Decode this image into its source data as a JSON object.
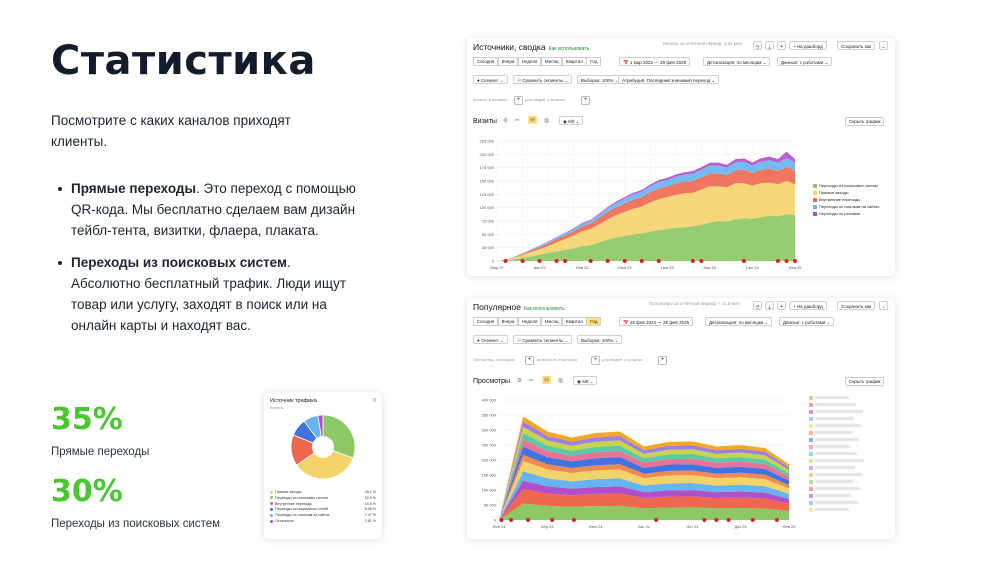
{
  "heading": "Статистика",
  "intro": "Посмотрите с каких каналов приходят клиенты.",
  "bullets": [
    {
      "bold": "Прямые переходы",
      "text": ". Это переход с помощью QR-кода. Мы бесплатно сделаем вам дизайн тейбл-тента, визитки, флаера, плаката."
    },
    {
      "bold": "Переходы из поисковых систем",
      "text": ". Абсолютно бесплатный трафик. Люди ищут товар или услугу, заходят в поиск или на онлайн карты и находят вас."
    }
  ],
  "stats": [
    {
      "value": "35%",
      "label": "Прямые переходы"
    },
    {
      "value": "30%",
      "label": "Переходы из поисковых систем"
    }
  ],
  "pie_card": {
    "title": "Источник трафика",
    "subtitle": "Визиты",
    "gear_icon": "gear-icon",
    "legend": [
      {
        "label": "Прямые заходы",
        "value": "35.1 %",
        "color": "#f5d36b"
      },
      {
        "label": "Переходы из поисковых систем",
        "value": "30.9 %",
        "color": "#8cc863"
      },
      {
        "label": "Внутренние переходы",
        "value": "15.8 %",
        "color": "#f0674f"
      },
      {
        "label": "Переходы из социальных сетей",
        "value": "8.98 %",
        "color": "#3f73e0"
      },
      {
        "label": "Переходы по ссылкам на сайтах",
        "value": "7.47 %",
        "color": "#66b4f0"
      },
      {
        "label": "Остальные",
        "value": "2.61 %",
        "color": "#b04fc8"
      }
    ]
  },
  "report1": {
    "title": "Источники, сводка",
    "how": "Как использовать",
    "right_hint": "Визиты за отчётный период: 4,81 млн",
    "to_dashboard": "+ На дашборд",
    "save_as": "Сохранить как",
    "periods": [
      "Сегодня",
      "Вчера",
      "Неделя",
      "Месяц",
      "Квартал",
      "Год"
    ],
    "date_range": "1 мар 2022 — 28 фев 2025",
    "detail": "Детализация: по месяцам",
    "robots": "Данные: с роботами",
    "segment": "Сегмент",
    "compare": "Сравнить сегменты",
    "sample": "Выборка: 100%",
    "attribution": "Атрибуция: Последний значимый переход",
    "filter1": "Визиты, в которых",
    "filter2": "для людей, у которых",
    "chart_title": "Визиты",
    "metric_count": "6/6",
    "hide_chart": "Скрыть график",
    "legend": [
      {
        "label": "Переходы из поисковых систем",
        "color": "#8cc863"
      },
      {
        "label": "Прямые заходы",
        "color": "#f5d36b"
      },
      {
        "label": "Внутренние переходы",
        "color": "#f0674f"
      },
      {
        "label": "Переходы по ссылкам на сайтах",
        "color": "#66b4f0"
      },
      {
        "label": "Переходы по рекламе",
        "color": "#b04fc8"
      }
    ]
  },
  "report2": {
    "title": "Популярное",
    "how": "Как использовать",
    "right_hint": "Просмотры за отчётный период: ≈ 11,0 млн",
    "to_dashboard": "+ На дашборд",
    "save_as": "Сохранить как",
    "periods": [
      "Сегодня",
      "Вчера",
      "Неделя",
      "Месяц",
      "Квартал",
      "Год"
    ],
    "date_range": "29 фев 2024 — 28 фев 2025",
    "detail": "Детализация: по месяцам",
    "robots": "Данные: с роботами",
    "segment": "Сегмент",
    "compare": "Сравнить сегменты",
    "sample": "Выборка: 100%",
    "filter1": "Просмотры, в которых",
    "filter2": "из визитов, в которых",
    "filter3": "для людей, у которых",
    "chart_title": "Просмотры",
    "metric_count": "6/6",
    "hide_chart": "Скрыть график"
  },
  "chart_data": [
    {
      "type": "area",
      "title": "",
      "x": [
        "Мар 22",
        "Апр 22",
        "Май 22",
        "Июн 22",
        "Июл 22",
        "Авг 22",
        "Сен 22",
        "Окт 22",
        "Ноя 22",
        "Дек 22",
        "Янв 23",
        "Фев 23",
        "Мар 23",
        "Апр 23",
        "Май 23",
        "Июн 23",
        "Июл 23",
        "Авг 23",
        "Сен 23",
        "Окт 23",
        "Ноя 23",
        "Дек 23",
        "Янв 24",
        "Фев 24",
        "Мар 24",
        "Апр 24",
        "Май 24",
        "Июн 24",
        "Июл 24",
        "Авг 24",
        "Сен 24",
        "Окт 24",
        "Ноя 24",
        "Дек 24",
        "Янв 25",
        "Фев 25"
      ],
      "x_ticks": [
        "Мар 22",
        "Авг 22",
        "Янв 23",
        "Июн 23",
        "Ноя 23",
        "Апр 24",
        "Сен 24",
        "Фев 25"
      ],
      "ylim": [
        0,
        225000
      ],
      "y_ticks": [
        "0",
        "25 000",
        "50 000",
        "75 000",
        "100 000",
        "125 000",
        "150 000",
        "175 000",
        "200 000",
        "225 000"
      ],
      "series": [
        {
          "name": "Переходы из поисковых систем",
          "values": [
            0,
            1000,
            3000,
            6000,
            9000,
            12000,
            15000,
            18000,
            21000,
            24000,
            28000,
            30000,
            35000,
            40000,
            44000,
            47000,
            50000,
            52000,
            55000,
            58000,
            60000,
            62000,
            63000,
            65000,
            68000,
            72000,
            75000,
            74000,
            78000,
            80000,
            79000,
            82000,
            85000,
            84000,
            88000,
            86000
          ]
        },
        {
          "name": "Прямые заходы",
          "values": [
            0,
            1000,
            3000,
            5000,
            8000,
            10000,
            13000,
            17000,
            20000,
            24000,
            28000,
            30000,
            34000,
            38000,
            42000,
            45000,
            48000,
            50000,
            55000,
            58000,
            60000,
            62000,
            64000,
            63000,
            66000,
            68000,
            65000,
            64000,
            68000,
            66000,
            62000,
            64000,
            62000,
            60000,
            62000,
            58000
          ]
        },
        {
          "name": "Внутренние переходы",
          "values": [
            0,
            500,
            1000,
            2000,
            3000,
            4000,
            5000,
            6000,
            7000,
            8000,
            9000,
            10000,
            12000,
            14000,
            15000,
            16000,
            17000,
            18000,
            19000,
            20000,
            20000,
            21000,
            22000,
            22000,
            23000,
            24000,
            24000,
            23000,
            24000,
            25000,
            24000,
            25000,
            26000,
            25000,
            27000,
            26000
          ]
        },
        {
          "name": "Переходы по ссылкам на сайтах",
          "values": [
            0,
            300,
            500,
            1000,
            1500,
            2000,
            2500,
            3000,
            3500,
            4000,
            5000,
            5500,
            6000,
            7000,
            8000,
            9000,
            10000,
            10000,
            11000,
            12000,
            12000,
            13000,
            13000,
            14000,
            14000,
            15000,
            15000,
            14000,
            15000,
            15000,
            14000,
            15000,
            16000,
            15000,
            16000,
            15000
          ]
        },
        {
          "name": "Переходы по рекламе",
          "values": [
            0,
            100,
            200,
            300,
            500,
            600,
            800,
            1000,
            1200,
            1400,
            1600,
            1800,
            2000,
            2200,
            2500,
            2800,
            3000,
            3200,
            3500,
            3800,
            4000,
            4200,
            4500,
            4800,
            5000,
            5200,
            5500,
            5500,
            6000,
            6500,
            6000,
            6500,
            7000,
            7000,
            12000,
            6000
          ]
        }
      ]
    },
    {
      "type": "area",
      "title": "",
      "x": [
        "Фев 24",
        "Мар 24",
        "Апр 24",
        "Май 24",
        "Июн 24",
        "Июл 24",
        "Авг 24",
        "Сен 24",
        "Окт 24",
        "Ноя 24",
        "Дек 24",
        "Янв 25",
        "Фев 25"
      ],
      "x_ticks": [
        "Фев 24",
        "Апр 24",
        "Июн 24",
        "Авг 24",
        "Окт 24",
        "Дек 24",
        "Фев 25"
      ],
      "ylim": [
        0,
        400000
      ],
      "y_ticks": [
        "0",
        "50 000",
        "100 000",
        "150 000",
        "200 000",
        "250 000",
        "300 000",
        "350 000",
        "400 000"
      ],
      "series_total": [
        0,
        345000,
        295000,
        275000,
        290000,
        295000,
        245000,
        260000,
        262000,
        245000,
        250000,
        240000,
        185000
      ]
    }
  ]
}
